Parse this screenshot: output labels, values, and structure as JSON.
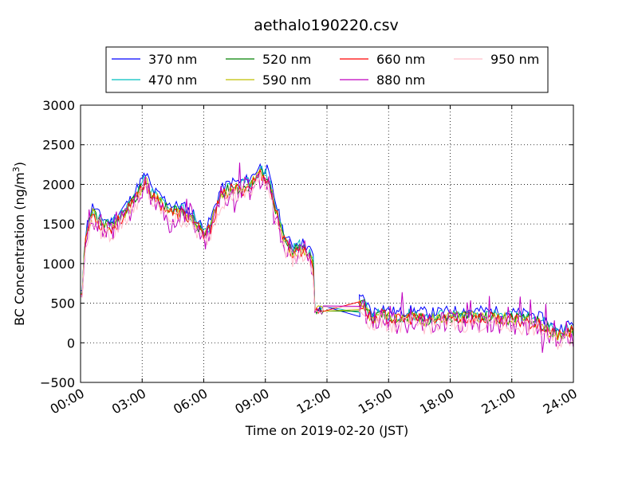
{
  "chart_data": {
    "type": "line",
    "title": "aethalo190220.csv",
    "xlabel": "Time on 2019-02-20 (JST)",
    "ylabel": "BC Concentration (ng/m",
    "ylabel_superscript": "3",
    "ylabel_suffix": ")",
    "xlim": [
      0,
      24
    ],
    "ylim": [
      -500,
      3000
    ],
    "x_ticks": [
      0,
      3,
      6,
      9,
      12,
      15,
      18,
      21,
      24
    ],
    "x_tick_labels": [
      "00:00",
      "03:00",
      "06:00",
      "09:00",
      "12:00",
      "15:00",
      "18:00",
      "21:00",
      "24:00"
    ],
    "y_ticks": [
      -500,
      0,
      500,
      1000,
      1500,
      2000,
      2500,
      3000
    ],
    "y_tick_labels": [
      "−500",
      "0",
      "500",
      "1000",
      "1500",
      "2000",
      "2500",
      "3000"
    ],
    "grid": true,
    "legend_position": "top, above plot",
    "x_unit": "hours since 00:00",
    "baseline": {
      "x": [
        0,
        0.3,
        0.6,
        1,
        1.5,
        2,
        2.5,
        2.9,
        3.2,
        3.5,
        4,
        4.5,
        5,
        5.5,
        6,
        6.3,
        6.8,
        7.3,
        7.8,
        8.3,
        8.7,
        9.1,
        9.5,
        9.9,
        10.3,
        10.7,
        11,
        11.3,
        11.6,
        11.8,
        13.6,
        13.8,
        14.2,
        14.6,
        15,
        15.5,
        16,
        17,
        18,
        19,
        20,
        21,
        22,
        22.5,
        23,
        23.3,
        23.6,
        24
      ],
      "y": [
        650,
        1400,
        1650,
        1500,
        1450,
        1600,
        1750,
        1950,
        2050,
        1850,
        1750,
        1650,
        1650,
        1550,
        1350,
        1450,
        1850,
        1950,
        1950,
        2000,
        2150,
        2100,
        1700,
        1300,
        1150,
        1200,
        1150,
        1050,
        420,
        420,
        480,
        480,
        300,
        380,
        330,
        300,
        330,
        300,
        320,
        330,
        320,
        300,
        280,
        230,
        130,
        100,
        140,
        160
      ]
    },
    "series": [
      {
        "name": "370 nm",
        "color": "#0000ff",
        "offset": 80,
        "noise": 70,
        "spike": 0,
        "seed": 11,
        "gap_value": 330
      },
      {
        "name": "470 nm",
        "color": "#00bfbf",
        "offset": 30,
        "noise": 80,
        "spike": 0,
        "seed": 23,
        "gap_value": 380
      },
      {
        "name": "520 nm",
        "color": "#008000",
        "offset": 0,
        "noise": 80,
        "spike": 0,
        "seed": 37,
        "gap_value": 400
      },
      {
        "name": "590 nm",
        "color": "#bfbf00",
        "offset": -10,
        "noise": 85,
        "spike": 0,
        "seed": 41,
        "gap_value": 420
      },
      {
        "name": "660 nm",
        "color": "#ff0000",
        "offset": -20,
        "noise": 85,
        "spike": 0,
        "seed": 53,
        "gap_value": 520
      },
      {
        "name": "880 nm",
        "color": "#bf00bf",
        "offset": -60,
        "noise": 140,
        "spike": 260,
        "seed": 67,
        "gap_value": 460
      },
      {
        "name": "950 nm",
        "color": "#ffc0cb",
        "offset": -90,
        "noise": 110,
        "spike": 0,
        "seed": 79,
        "gap_value": 440
      }
    ]
  }
}
